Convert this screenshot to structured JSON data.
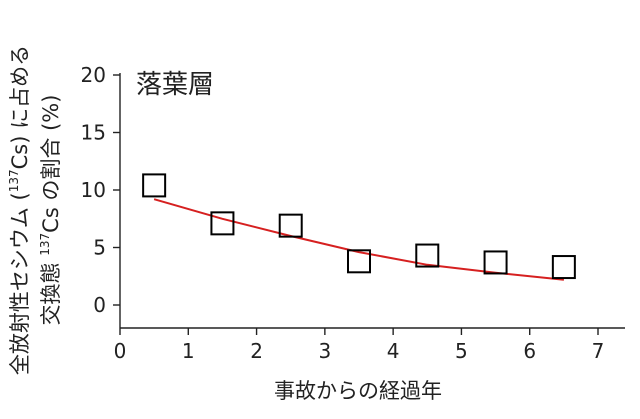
{
  "chart_data": {
    "type": "scatter",
    "title": "",
    "annotation": "落葉層",
    "xlabel": "事故からの経過年",
    "ylabel": {
      "line1_prefix": "全放射性セシウム (",
      "line1_sup": "137",
      "line1_suffix": "Cs) に占める",
      "line2_prefix": "交換態 ",
      "line2_sup": "137",
      "line2_suffix": "Cs の割合 (%)"
    },
    "xlim": [
      0,
      7
    ],
    "ylim": [
      -2,
      20
    ],
    "xticks": [
      0,
      1,
      2,
      3,
      4,
      5,
      6,
      7
    ],
    "yticks": [
      0,
      5,
      10,
      15,
      20
    ],
    "grid": false,
    "series": [
      {
        "type": "scatter",
        "marker": "square-open",
        "color": "#000000",
        "x": [
          0.5,
          1.5,
          2.5,
          3.5,
          4.5,
          5.5,
          6.5
        ],
        "y": [
          10.4,
          7.1,
          6.9,
          3.8,
          4.3,
          3.7,
          3.3
        ]
      },
      {
        "type": "line",
        "color": "#d62020",
        "x": [
          0.5,
          1.5,
          2.5,
          3.5,
          4.5,
          5.5,
          6.5
        ],
        "y": [
          9.2,
          7.5,
          6.0,
          4.6,
          3.5,
          2.8,
          2.2
        ]
      }
    ]
  }
}
